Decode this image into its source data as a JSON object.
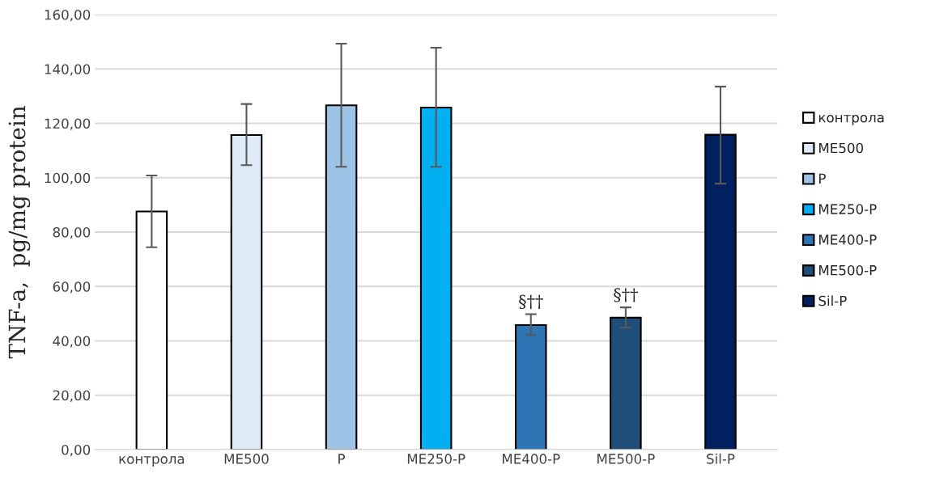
{
  "chart_data": {
    "type": "bar",
    "ylabel": "TNF-a,  pg/mg protein",
    "categories": [
      "контрола",
      "ME500",
      "P",
      "ME250-P",
      "ME400-P",
      "ME500-P",
      "Sil-P"
    ],
    "series": [
      {
        "name": "контрола",
        "color": "#ffffff",
        "values": [
          87.6,
          null,
          null,
          null,
          null,
          null,
          null
        ],
        "errors": [
          [
            74.4,
            100.8
          ],
          null,
          null,
          null,
          null,
          null,
          null
        ]
      },
      {
        "name": "ME500",
        "color": "#deebf7",
        "values": [
          null,
          115.7,
          null,
          null,
          null,
          null,
          null
        ],
        "errors": [
          null,
          [
            104.6,
            127.1
          ],
          null,
          null,
          null,
          null,
          null
        ]
      },
      {
        "name": "P",
        "color": "#9dc3e6",
        "values": [
          null,
          null,
          126.6,
          null,
          null,
          null,
          null
        ],
        "errors": [
          null,
          null,
          [
            104.0,
            149.3
          ],
          null,
          null,
          null,
          null
        ]
      },
      {
        "name": "ME250-P",
        "color": "#00b0f0",
        "values": [
          null,
          null,
          null,
          125.8,
          null,
          null,
          null
        ],
        "errors": [
          null,
          null,
          null,
          [
            104.0,
            147.8
          ],
          null,
          null,
          null
        ]
      },
      {
        "name": "ME400-P",
        "color": "#2e75b6",
        "values": [
          null,
          null,
          null,
          null,
          45.8,
          null,
          null
        ],
        "errors": [
          null,
          null,
          null,
          null,
          [
            42.1,
            49.8
          ],
          null,
          null
        ]
      },
      {
        "name": "ME500-P",
        "color": "#1f4e79",
        "values": [
          null,
          null,
          null,
          null,
          null,
          48.5,
          null
        ],
        "errors": [
          null,
          null,
          null,
          null,
          null,
          [
            44.8,
            52.3
          ],
          null
        ]
      },
      {
        "name": "Sil-P",
        "color": "#002060",
        "values": [
          null,
          null,
          null,
          null,
          null,
          null,
          115.8
        ],
        "errors": [
          null,
          null,
          null,
          null,
          null,
          null,
          [
            97.8,
            133.5
          ]
        ]
      }
    ],
    "ylim": [
      0,
      160
    ],
    "yticks": [
      {
        "value": 0,
        "label": "0,00"
      },
      {
        "value": 20,
        "label": "20,00"
      },
      {
        "value": 40,
        "label": "40,00"
      },
      {
        "value": 60,
        "label": "60,00"
      },
      {
        "value": 80,
        "label": "80,00"
      },
      {
        "value": 100,
        "label": "100,00"
      },
      {
        "value": 120,
        "label": "120,00"
      },
      {
        "value": 140,
        "label": "140,00"
      },
      {
        "value": 160,
        "label": "160,00"
      }
    ],
    "annotations": [
      {
        "text": "§††",
        "x": "ME400-P",
        "y": 49.8
      },
      {
        "text": "§††",
        "x": "ME500-P",
        "y": 52.3
      }
    ],
    "grid": "y",
    "legend": "right"
  }
}
